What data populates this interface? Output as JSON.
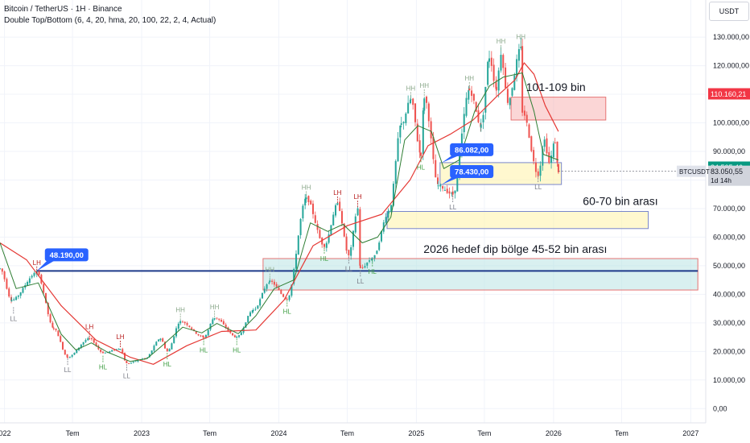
{
  "header": {
    "title": "Bitcoin / TetherUS · 1H · Binance",
    "indicator": "Double Top/Bottom (6, 4, 20, hma, 20, 100, 22, 2, 4, Actual)",
    "currency": "USDT"
  },
  "colors": {
    "bull": "#26a69a",
    "bear": "#ef5350",
    "fast_ma": "#2e7d32",
    "slow_ma": "#e53935",
    "hline": "#1e3a8a",
    "callout": "#2962ff",
    "zone_red": "#f8b4b4",
    "zone_yellow": "#fff3a8",
    "zone_teal": "#b9e3e3"
  },
  "chart_data": {
    "type": "candlestick",
    "y_range": [
      -5000,
      143000
    ],
    "y_ticks": [
      0,
      10000,
      20000,
      30000,
      40000,
      50000,
      60000,
      70000,
      80000,
      90000,
      100000,
      110000,
      120000,
      130000
    ],
    "y_tick_labels": [
      "0,00",
      "10.000,00",
      "20.000,00",
      "30.000,00",
      "40.000,00",
      "50.000,00",
      "60.000,00",
      "70.000,00",
      "80.000,00",
      "90.000,00",
      "100.000,00",
      "110.000,00",
      "120.000,00",
      "130.000,00"
    ],
    "x_range": [
      "2021-12-20",
      "2027-02-10"
    ],
    "x_ticks": [
      {
        "date": "2022-01-01",
        "label": "022"
      },
      {
        "date": "2022-07-01",
        "label": "Tem"
      },
      {
        "date": "2023-01-01",
        "label": "2023"
      },
      {
        "date": "2023-07-01",
        "label": "Tem"
      },
      {
        "date": "2024-01-01",
        "label": "2024"
      },
      {
        "date": "2024-07-01",
        "label": "Tem"
      },
      {
        "date": "2025-01-01",
        "label": "2025"
      },
      {
        "date": "2025-07-01",
        "label": "Tem"
      },
      {
        "date": "2026-01-01",
        "label": "2026"
      },
      {
        "date": "2026-07-01",
        "label": "Tem"
      },
      {
        "date": "2027-01-01",
        "label": "2027"
      }
    ],
    "price_path": [
      [
        "2021-12-20",
        49000
      ],
      [
        "2022-01-20",
        38000
      ],
      [
        "2022-03-28",
        47500
      ],
      [
        "2022-05-12",
        28000
      ],
      [
        "2022-06-18",
        18000
      ],
      [
        "2022-08-15",
        24500
      ],
      [
        "2022-09-20",
        19500
      ],
      [
        "2022-11-05",
        21000
      ],
      [
        "2022-11-22",
        15800
      ],
      [
        "2023-01-10",
        17500
      ],
      [
        "2023-02-20",
        24500
      ],
      [
        "2023-03-10",
        20000
      ],
      [
        "2023-04-14",
        30500
      ],
      [
        "2023-06-15",
        25000
      ],
      [
        "2023-07-14",
        31800
      ],
      [
        "2023-09-11",
        25000
      ],
      [
        "2023-10-25",
        34500
      ],
      [
        "2023-12-08",
        44500
      ],
      [
        "2024-01-23",
        38500
      ],
      [
        "2024-03-14",
        73500
      ],
      [
        "2024-05-01",
        57000
      ],
      [
        "2024-06-05",
        71500
      ],
      [
        "2024-07-05",
        53500
      ],
      [
        "2024-07-29",
        70000
      ],
      [
        "2024-08-05",
        49000
      ],
      [
        "2024-09-06",
        52500
      ],
      [
        "2024-10-20",
        69000
      ],
      [
        "2024-11-22",
        99500
      ],
      [
        "2024-12-17",
        108000
      ],
      [
        "2025-01-13",
        89000
      ],
      [
        "2025-01-22",
        109000
      ],
      [
        "2025-02-28",
        78000
      ],
      [
        "2025-04-08",
        75000
      ],
      [
        "2025-05-22",
        111500
      ],
      [
        "2025-06-22",
        99000
      ],
      [
        "2025-07-14",
        123000
      ],
      [
        "2025-08-02",
        112000
      ],
      [
        "2025-08-14",
        124500
      ],
      [
        "2025-09-01",
        107500
      ],
      [
        "2025-10-06",
        126000
      ],
      [
        "2025-10-10",
        104000
      ],
      [
        "2025-11-21",
        82000
      ],
      [
        "2025-12-08",
        94000
      ],
      [
        "2025-12-20",
        86000
      ],
      [
        "2026-01-05",
        93500
      ],
      [
        "2026-01-14",
        83050
      ]
    ],
    "fast_ma": [
      [
        "2021-12-20",
        58000
      ],
      [
        "2022-02-01",
        42000
      ],
      [
        "2022-04-01",
        44000
      ],
      [
        "2022-06-01",
        26000
      ],
      [
        "2022-07-10",
        20500
      ],
      [
        "2022-08-20",
        23000
      ],
      [
        "2022-10-01",
        19800
      ],
      [
        "2022-12-01",
        16500
      ],
      [
        "2023-01-15",
        17500
      ],
      [
        "2023-03-01",
        22500
      ],
      [
        "2023-04-20",
        28500
      ],
      [
        "2023-06-10",
        26500
      ],
      [
        "2023-07-20",
        29800
      ],
      [
        "2023-09-15",
        26200
      ],
      [
        "2023-11-01",
        32500
      ],
      [
        "2023-12-20",
        42000
      ],
      [
        "2024-02-10",
        45000
      ],
      [
        "2024-03-25",
        65000
      ],
      [
        "2024-05-10",
        62000
      ],
      [
        "2024-06-20",
        64500
      ],
      [
        "2024-08-10",
        58000
      ],
      [
        "2024-09-20",
        60000
      ],
      [
        "2024-10-25",
        67000
      ],
      [
        "2024-12-01",
        94000
      ],
      [
        "2025-01-05",
        99000
      ],
      [
        "2025-02-10",
        97000
      ],
      [
        "2025-03-15",
        84000
      ],
      [
        "2025-04-25",
        87000
      ],
      [
        "2025-06-05",
        104000
      ],
      [
        "2025-07-15",
        113000
      ],
      [
        "2025-08-20",
        116000
      ],
      [
        "2025-10-10",
        117500
      ],
      [
        "2025-11-10",
        104000
      ],
      [
        "2025-12-05",
        89000
      ],
      [
        "2026-01-14",
        87000
      ]
    ],
    "slow_ma": [
      [
        "2021-12-20",
        58000
      ],
      [
        "2022-03-01",
        52000
      ],
      [
        "2022-06-01",
        36000
      ],
      [
        "2022-09-01",
        24000
      ],
      [
        "2022-12-01",
        18000
      ],
      [
        "2023-02-01",
        15500
      ],
      [
        "2023-05-01",
        22000
      ],
      [
        "2023-08-01",
        27000
      ],
      [
        "2023-11-01",
        27500
      ],
      [
        "2024-01-15",
        38000
      ],
      [
        "2024-04-01",
        57000
      ],
      [
        "2024-07-01",
        64000
      ],
      [
        "2024-10-01",
        68000
      ],
      [
        "2024-12-15",
        80000
      ],
      [
        "2025-02-01",
        92000
      ],
      [
        "2025-04-01",
        96000
      ],
      [
        "2025-06-01",
        101000
      ],
      [
        "2025-08-01",
        109000
      ],
      [
        "2025-09-20",
        115000
      ],
      [
        "2025-10-15",
        121000
      ],
      [
        "2025-11-10",
        117000
      ],
      [
        "2025-12-10",
        106000
      ],
      [
        "2026-01-14",
        97000
      ]
    ],
    "pivots": [
      {
        "label": "LL",
        "date": "2022-01-25",
        "price": 35500,
        "kind": "LL"
      },
      {
        "label": "LH",
        "date": "2022-03-28",
        "price": 47500,
        "kind": "LH"
      },
      {
        "label": "LL",
        "date": "2022-06-18",
        "price": 17500,
        "kind": "LL"
      },
      {
        "label": "LH",
        "date": "2022-08-15",
        "price": 25000,
        "kind": "LH"
      },
      {
        "label": "HL",
        "date": "2022-09-20",
        "price": 18500,
        "kind": "HL"
      },
      {
        "label": "LH",
        "date": "2022-11-05",
        "price": 21500,
        "kind": "LH"
      },
      {
        "label": "LL",
        "date": "2022-11-22",
        "price": 15500,
        "kind": "LL"
      },
      {
        "label": "HL",
        "date": "2023-03-10",
        "price": 19500,
        "kind": "HL"
      },
      {
        "label": "HH",
        "date": "2023-04-14",
        "price": 31000,
        "kind": "HH"
      },
      {
        "label": "HL",
        "date": "2023-06-15",
        "price": 24500,
        "kind": "HL"
      },
      {
        "label": "HH",
        "date": "2023-07-14",
        "price": 32000,
        "kind": "HH"
      },
      {
        "label": "HL",
        "date": "2023-09-11",
        "price": 24500,
        "kind": "HL"
      },
      {
        "label": "HH",
        "date": "2023-12-08",
        "price": 45000,
        "kind": "HH"
      },
      {
        "label": "HL",
        "date": "2024-01-23",
        "price": 38000,
        "kind": "HL"
      },
      {
        "label": "HH",
        "date": "2024-03-14",
        "price": 73800,
        "kind": "HH"
      },
      {
        "label": "HL",
        "date": "2024-05-01",
        "price": 56500,
        "kind": "HL"
      },
      {
        "label": "LH",
        "date": "2024-06-05",
        "price": 72000,
        "kind": "LH"
      },
      {
        "label": "LL",
        "date": "2024-07-05",
        "price": 53000,
        "kind": "LL"
      },
      {
        "label": "LH",
        "date": "2024-07-29",
        "price": 70500,
        "kind": "LH"
      },
      {
        "label": "LL",
        "date": "2024-08-05",
        "price": 48500,
        "kind": "LL"
      },
      {
        "label": "HL",
        "date": "2024-09-06",
        "price": 52000,
        "kind": "HL"
      },
      {
        "label": "HH",
        "date": "2024-12-17",
        "price": 108500,
        "kind": "HH"
      },
      {
        "label": "HL",
        "date": "2025-01-13",
        "price": 88500,
        "kind": "HL"
      },
      {
        "label": "HH",
        "date": "2025-01-22",
        "price": 109500,
        "kind": "HH"
      },
      {
        "label": "LL",
        "date": "2025-04-08",
        "price": 74500,
        "kind": "LL"
      },
      {
        "label": "HH",
        "date": "2025-05-22",
        "price": 112000,
        "kind": "HH"
      },
      {
        "label": "HH",
        "date": "2025-08-14",
        "price": 125000,
        "kind": "HH"
      },
      {
        "label": "HH",
        "date": "2025-10-06",
        "price": 126500,
        "kind": "HH"
      },
      {
        "label": "LL",
        "date": "2025-11-21",
        "price": 81500,
        "kind": "LL"
      }
    ],
    "zones": [
      {
        "name": "red",
        "from": "2025-09-10",
        "to": "2026-05-20",
        "low": 101000,
        "high": 109000
      },
      {
        "name": "yellow-small",
        "from": "2025-03-05",
        "to": "2026-01-22",
        "low": 78430,
        "high": 86082
      },
      {
        "name": "yellow-big",
        "from": "2024-10-15",
        "to": "2026-09-10",
        "low": 63000,
        "high": 69000
      },
      {
        "name": "teal",
        "from": "2023-11-20",
        "to": "2027-01-20",
        "low": 41500,
        "high": 52500
      }
    ],
    "hline": {
      "price": 48190,
      "from": "2022-03-28",
      "to": "2027-01-20"
    },
    "callouts": [
      {
        "text": "48.190,00",
        "price": 48190,
        "date": "2022-03-28"
      },
      {
        "text": "86.082,00",
        "price": 86082,
        "date": "2025-03-10"
      },
      {
        "text": "78.430,00",
        "price": 78430,
        "date": "2025-03-10"
      }
    ],
    "annotations": [
      {
        "text": "101-109 bin",
        "date": "2025-10-20",
        "price": 111200
      },
      {
        "text": "60-70 bin arası",
        "date": "2026-03-20",
        "price": 71200
      },
      {
        "text": "2026 hedef  dip bölge 45-52 bin arası",
        "date": "2025-01-20",
        "price": 54500
      }
    ],
    "price_labels": [
      {
        "text": "110.160,21",
        "price": 110160,
        "color": "#f23645"
      },
      {
        "text": "84.505,46",
        "price": 84505,
        "color": "#089981"
      }
    ],
    "last": {
      "symbol": "BTCUSDT",
      "price_text": "83.050,55",
      "countdown": "1d 14h",
      "price": 83050
    }
  }
}
